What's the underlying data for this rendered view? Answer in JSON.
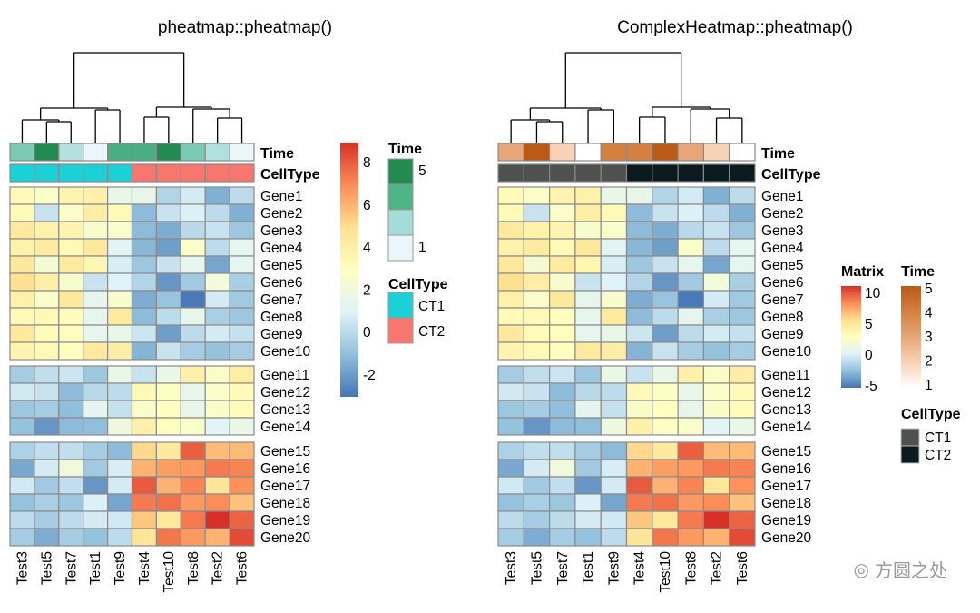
{
  "chart_data": [
    {
      "type": "heatmap",
      "title": "pheatmap::pheatmap()",
      "columns": [
        "Test3",
        "Test5",
        "Test7",
        "Test1",
        "Test9",
        "Test4",
        "Test10",
        "Test8",
        "Test2",
        "Test6"
      ],
      "rows": [
        "Gene1",
        "Gene2",
        "Gene3",
        "Gene4",
        "Gene5",
        "Gene6",
        "Gene7",
        "Gene8",
        "Gene9",
        "Gene10",
        "Gene11",
        "Gene12",
        "Gene13",
        "Gene14",
        "Gene15",
        "Gene16",
        "Gene17",
        "Gene18",
        "Gene19",
        "Gene20"
      ],
      "row_splits": [
        10,
        4,
        6
      ],
      "column_dendrogram": "(((Test3,(Test5,Test7)),(Test1,Test9)),((Test4,Test10),(Test8,(Test2,Test6))))",
      "values": [
        [
          3.2,
          2.6,
          3.6,
          3.8,
          1.5,
          1.4,
          -0.3,
          0.6,
          -1.5,
          0.0
        ],
        [
          3.2,
          0.3,
          2.6,
          4.0,
          3.3,
          -1.2,
          0.3,
          0.8,
          0.0,
          -1.5
        ],
        [
          4.3,
          3.7,
          3.6,
          2.4,
          2.5,
          -1.2,
          -1.6,
          -0.1,
          0.3,
          -0.8
        ],
        [
          3.7,
          4.2,
          3.3,
          4.4,
          1.0,
          -1.3,
          -2.0,
          2.6,
          0.0,
          1.2
        ],
        [
          4.4,
          2.2,
          4.2,
          3.5,
          0.7,
          -0.8,
          0.3,
          1.3,
          -1.8,
          1.2
        ],
        [
          4.8,
          4.0,
          2.4,
          0.3,
          0.9,
          -0.3,
          -2.2,
          -0.7,
          2.0,
          -0.5
        ],
        [
          3.8,
          2.5,
          4.4,
          1.3,
          2.4,
          -1.6,
          -0.9,
          -3.0,
          0.6,
          -0.7
        ],
        [
          3.2,
          3.3,
          3.0,
          1.3,
          4.2,
          -1.2,
          0.0,
          1.3,
          -0.5,
          -0.8
        ],
        [
          4.3,
          3.1,
          3.0,
          1.3,
          1.5,
          0.4,
          -2.0,
          0.0,
          0.6,
          0.2
        ],
        [
          3.6,
          3.3,
          2.9,
          4.3,
          4.0,
          -1.4,
          0.3,
          -0.6,
          -1.0,
          -0.6
        ],
        [
          -0.6,
          0.1,
          0.4,
          -0.8,
          1.5,
          0.3,
          1.5,
          3.8,
          2.6,
          4.0
        ],
        [
          0.5,
          0.3,
          -1.2,
          -0.1,
          0.0,
          3.3,
          2.8,
          1.4,
          2.6,
          3.2
        ],
        [
          -0.8,
          -0.6,
          -1.1,
          1.2,
          0.2,
          2.6,
          2.9,
          1.4,
          2.6,
          3.1
        ],
        [
          -1.0,
          -2.2,
          -1.2,
          -1.1,
          1.8,
          3.8,
          2.8,
          2.5,
          1.0,
          1.5
        ],
        [
          -0.4,
          0.1,
          0.1,
          -0.6,
          -1.2,
          5.1,
          4.3,
          7.9,
          5.8,
          5.8
        ],
        [
          -1.7,
          0.6,
          1.9,
          -0.7,
          0.7,
          6.0,
          6.5,
          6.6,
          7.3,
          7.1
        ],
        [
          0.5,
          -0.7,
          0.1,
          -2.2,
          0.6,
          8.0,
          6.0,
          7.1,
          4.5,
          6.8
        ],
        [
          -1.0,
          -0.5,
          -0.8,
          0.8,
          -1.8,
          7.3,
          7.5,
          6.6,
          6.9,
          5.6
        ],
        [
          0.0,
          -0.6,
          0.0,
          0.6,
          0.5,
          5.5,
          4.4,
          7.3,
          8.9,
          7.8
        ],
        [
          -0.6,
          -1.6,
          -0.6,
          -1.0,
          0.0,
          4.5,
          7.4,
          6.6,
          6.0,
          8.3
        ]
      ],
      "annotations": {
        "Time": {
          "label": "Time",
          "values": [
            3,
            5,
            2,
            1,
            4,
            4,
            5,
            3,
            2,
            1
          ]
        },
        "CellType": {
          "label": "CellType",
          "values": [
            "CT1",
            "CT1",
            "CT1",
            "CT1",
            "CT1",
            "CT2",
            "CT2",
            "CT2",
            "CT2",
            "CT2"
          ]
        }
      },
      "color_scale": {
        "palette": [
          "#4575B4",
          "#91BFDB",
          "#E0F3F8",
          "#FFFFBF",
          "#FEE090",
          "#FC8D59",
          "#D73027"
        ],
        "range": [
          -3.1,
          8.9
        ],
        "ticks": [
          "8",
          "6",
          "4",
          "2",
          "0",
          "-2"
        ]
      },
      "legends": {
        "time": {
          "title": "Time",
          "ticks": [
            "5",
            "1"
          ],
          "colors": [
            "#238b4f",
            "#4fb388",
            "#a6dcd8",
            "#eaf6f9"
          ]
        },
        "celltype": {
          "title": "CellType",
          "items": [
            {
              "label": "CT1",
              "color": "#1bd1d8"
            },
            {
              "label": "CT2",
              "color": "#f8766d"
            }
          ]
        }
      }
    },
    {
      "type": "heatmap",
      "title": "ComplexHeatmap::pheatmap()",
      "same_matrix_as": "pheatmap::pheatmap()",
      "time_colors": {
        "1": "#ffffff",
        "2": "#f8d2b6",
        "3": "#e6a679",
        "4": "#d48040",
        "5": "#b95a17"
      },
      "legends": {
        "matrix": {
          "title": "Matrix",
          "ticks": [
            "10",
            "5",
            "0",
            "-5"
          ],
          "range": [
            -5,
            10
          ]
        },
        "time": {
          "title": "Time",
          "ticks": [
            "5",
            "4",
            "3",
            "2",
            "1"
          ]
        },
        "celltype": {
          "title": "CellType",
          "items": [
            {
              "label": "CT1",
              "color": "#4f514f"
            },
            {
              "label": "CT2",
              "color": "#0a1a1f"
            }
          ]
        }
      }
    }
  ],
  "left_time_colors": {
    "1": "#eaf6f9",
    "2": "#b2e0dc",
    "3": "#7ccab4",
    "4": "#4aae83",
    "5": "#238b4f"
  },
  "watermark": "方圆之处"
}
